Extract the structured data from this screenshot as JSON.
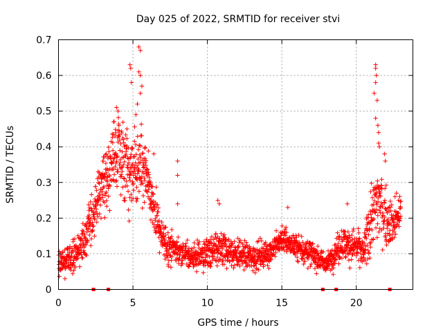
{
  "chart_data": {
    "type": "scatter",
    "title": "Day 025 of 2022, SRMTID for receiver stvi",
    "xlabel": "GPS time / hours",
    "ylabel": "SRMTID / TECUs",
    "xlim": [
      0,
      23.8
    ],
    "ylim": [
      0,
      0.7
    ],
    "xticks": [
      0,
      5,
      10,
      15,
      20
    ],
    "xtick_labels": [
      "0",
      "5",
      "10",
      "15",
      "20"
    ],
    "yticks": [
      0,
      0.1,
      0.2,
      0.3,
      0.4,
      0.5,
      0.6,
      0.7
    ],
    "ytick_labels": [
      "0",
      "0.1",
      "0.2",
      "0.3",
      "0.4",
      "0.5",
      "0.6",
      "0.7"
    ],
    "grid": true,
    "marker_color": "#ff0000",
    "series": [
      {
        "name": "SRMTID",
        "marker": "plus",
        "profile": [
          [
            0.0,
            0.07,
            0.03
          ],
          [
            0.5,
            0.08,
            0.03
          ],
          [
            1.0,
            0.09,
            0.04
          ],
          [
            1.5,
            0.12,
            0.04
          ],
          [
            2.0,
            0.17,
            0.05
          ],
          [
            2.5,
            0.24,
            0.06
          ],
          [
            3.0,
            0.3,
            0.07
          ],
          [
            3.5,
            0.35,
            0.08
          ],
          [
            4.0,
            0.4,
            0.08
          ],
          [
            4.5,
            0.33,
            0.08
          ],
          [
            5.0,
            0.32,
            0.08
          ],
          [
            5.5,
            0.36,
            0.09
          ],
          [
            6.0,
            0.3,
            0.08
          ],
          [
            6.5,
            0.22,
            0.06
          ],
          [
            7.0,
            0.13,
            0.04
          ],
          [
            8.0,
            0.11,
            0.03
          ],
          [
            9.0,
            0.09,
            0.03
          ],
          [
            10.0,
            0.1,
            0.04
          ],
          [
            11.0,
            0.11,
            0.04
          ],
          [
            12.0,
            0.1,
            0.03
          ],
          [
            13.0,
            0.09,
            0.03
          ],
          [
            14.0,
            0.1,
            0.03
          ],
          [
            15.0,
            0.14,
            0.03
          ],
          [
            16.0,
            0.12,
            0.03
          ],
          [
            17.0,
            0.1,
            0.03
          ],
          [
            18.0,
            0.07,
            0.02
          ],
          [
            19.0,
            0.13,
            0.04
          ],
          [
            20.0,
            0.12,
            0.04
          ],
          [
            20.5,
            0.1,
            0.04
          ],
          [
            21.0,
            0.2,
            0.08
          ],
          [
            21.5,
            0.25,
            0.09
          ],
          [
            22.0,
            0.2,
            0.06
          ],
          [
            22.5,
            0.18,
            0.05
          ],
          [
            23.0,
            0.22,
            0.04
          ]
        ],
        "outliers": [
          [
            5.4,
            0.68
          ],
          [
            5.5,
            0.67
          ],
          [
            4.8,
            0.63
          ],
          [
            4.85,
            0.62
          ],
          [
            5.4,
            0.61
          ],
          [
            5.5,
            0.6
          ],
          [
            4.9,
            0.58
          ],
          [
            5.6,
            0.57
          ],
          [
            5.5,
            0.55
          ],
          [
            5.3,
            0.52
          ],
          [
            5.2,
            0.49
          ],
          [
            3.9,
            0.51
          ],
          [
            4.0,
            0.5
          ],
          [
            3.7,
            0.47
          ],
          [
            4.6,
            0.45
          ],
          [
            21.3,
            0.63
          ],
          [
            21.3,
            0.62
          ],
          [
            21.35,
            0.6
          ],
          [
            21.3,
            0.58
          ],
          [
            21.2,
            0.55
          ],
          [
            21.4,
            0.53
          ],
          [
            21.3,
            0.48
          ],
          [
            21.45,
            0.46
          ],
          [
            21.5,
            0.44
          ],
          [
            21.5,
            0.41
          ],
          [
            21.55,
            0.4
          ],
          [
            21.9,
            0.38
          ],
          [
            21.95,
            0.36
          ],
          [
            8.0,
            0.36
          ],
          [
            8.0,
            0.32
          ],
          [
            8.0,
            0.24
          ],
          [
            10.7,
            0.25
          ],
          [
            10.8,
            0.24
          ],
          [
            15.4,
            0.23
          ],
          [
            19.4,
            0.24
          ],
          [
            22.6,
            0.26
          ],
          [
            22.7,
            0.27
          ],
          [
            3.0,
            0.36
          ],
          [
            3.2,
            0.38
          ],
          [
            6.4,
            0.38
          ]
        ]
      }
    ],
    "gap_markers_x": [
      2.35,
      3.35,
      17.75,
      18.65,
      22.25
    ]
  }
}
